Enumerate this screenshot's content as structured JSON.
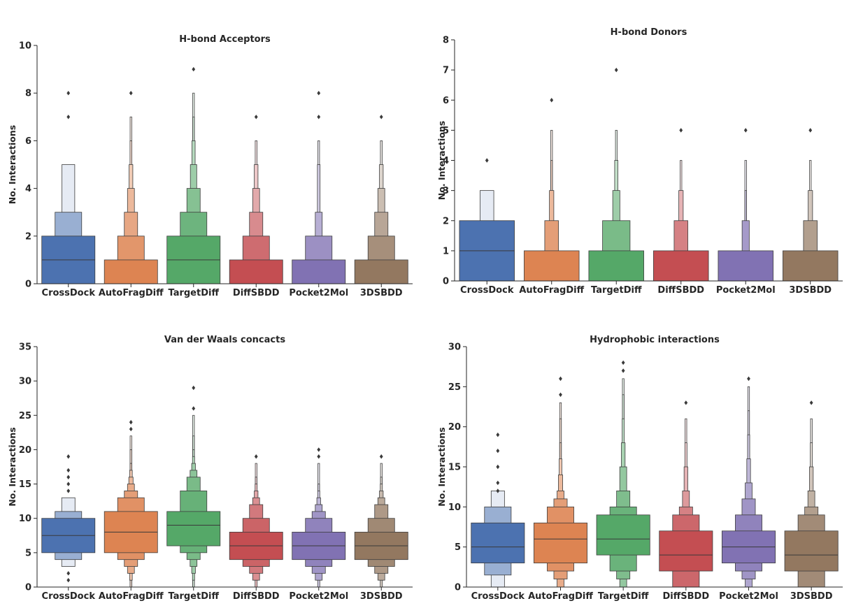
{
  "colors": {
    "CrossDock": "#4c72b0",
    "AutoFragDiff": "#dd8452",
    "TargetDiff": "#55a868",
    "DiffSBDD": "#c44e52",
    "Pocket2Mol": "#8172b3",
    "3DSBDD": "#937860",
    "axis": "#262626",
    "median": "#3a3a3a"
  },
  "chart_data": [
    {
      "type": "boxen",
      "title": "H-bond Acceptors",
      "xlabel": "",
      "ylabel": "No. Interactions",
      "ylim": [
        0,
        10
      ],
      "yticks": [
        0,
        2,
        4,
        6,
        8,
        10
      ],
      "categories": [
        "CrossDock",
        "AutoFragDiff",
        "TargetDiff",
        "DiffSBDD",
        "Pocket2Mol",
        "3DSBDD"
      ],
      "series": [
        {
          "name": "CrossDock",
          "median": 1,
          "boxes": [
            [
              0,
              2,
              1.0
            ],
            [
              0,
              3,
              0.5
            ],
            [
              0,
              5,
              0.24
            ]
          ],
          "outliers": [
            7,
            8
          ]
        },
        {
          "name": "AutoFragDiff",
          "median": 0,
          "boxes": [
            [
              0,
              1,
              1.0
            ],
            [
              0,
              2,
              0.5
            ],
            [
              0,
              3,
              0.25
            ],
            [
              0,
              4,
              0.13
            ],
            [
              0,
              5,
              0.07
            ],
            [
              0,
              6,
              0.035
            ],
            [
              0,
              7,
              0.018
            ]
          ],
          "outliers": [
            8
          ]
        },
        {
          "name": "TargetDiff",
          "median": 1,
          "boxes": [
            [
              0,
              2,
              1.0
            ],
            [
              0,
              3,
              0.5
            ],
            [
              0,
              4,
              0.25
            ],
            [
              0,
              5,
              0.12
            ],
            [
              0,
              6,
              0.06
            ],
            [
              0,
              7,
              0.03
            ],
            [
              0,
              8,
              0.015
            ]
          ],
          "outliers": [
            9
          ]
        },
        {
          "name": "DiffSBDD",
          "median": 0,
          "boxes": [
            [
              0,
              1,
              1.0
            ],
            [
              0,
              2,
              0.5
            ],
            [
              0,
              3,
              0.25
            ],
            [
              0,
              4,
              0.13
            ],
            [
              0,
              5,
              0.07
            ],
            [
              0,
              6,
              0.035
            ]
          ],
          "outliers": [
            7
          ]
        },
        {
          "name": "Pocket2Mol",
          "median": 0,
          "boxes": [
            [
              0,
              1,
              1.0
            ],
            [
              0,
              2,
              0.5
            ],
            [
              0,
              3,
              0.13
            ],
            [
              0,
              5,
              0.05
            ],
            [
              0,
              6,
              0.02
            ]
          ],
          "outliers": [
            7,
            8
          ]
        },
        {
          "name": "3DSBDD",
          "median": 0,
          "boxes": [
            [
              0,
              1,
              1.0
            ],
            [
              0,
              2,
              0.5
            ],
            [
              0,
              3,
              0.25
            ],
            [
              0,
              4,
              0.13
            ],
            [
              0,
              5,
              0.07
            ],
            [
              0,
              6,
              0.035
            ]
          ],
          "outliers": [
            7
          ]
        }
      ]
    },
    {
      "type": "boxen",
      "title": "H-bond Donors",
      "xlabel": "",
      "ylabel": "No. Interactions",
      "ylim": [
        0,
        8
      ],
      "yticks": [
        0,
        1,
        2,
        3,
        4,
        5,
        6,
        7,
        8
      ],
      "categories": [
        "CrossDock",
        "AutoFragDiff",
        "TargetDiff",
        "DiffSBDD",
        "Pocket2Mol",
        "3DSBDD"
      ],
      "series": [
        {
          "name": "CrossDock",
          "median": 1,
          "boxes": [
            [
              0,
              2,
              1.0
            ],
            [
              0,
              3,
              0.25
            ]
          ],
          "outliers": [
            4
          ]
        },
        {
          "name": "AutoFragDiff",
          "median": 0,
          "boxes": [
            [
              0,
              1,
              1.0
            ],
            [
              0,
              2,
              0.25
            ],
            [
              0,
              3,
              0.08
            ],
            [
              0,
              4,
              0.03
            ],
            [
              0,
              5,
              0.015
            ]
          ],
          "outliers": [
            6
          ]
        },
        {
          "name": "TargetDiff",
          "median": 0,
          "boxes": [
            [
              0,
              1,
              1.0
            ],
            [
              0,
              2,
              0.5
            ],
            [
              0,
              3,
              0.13
            ],
            [
              0,
              4,
              0.06
            ],
            [
              0,
              5,
              0.02
            ]
          ],
          "outliers": [
            7
          ]
        },
        {
          "name": "DiffSBDD",
          "median": 0,
          "boxes": [
            [
              0,
              1,
              1.0
            ],
            [
              0,
              2,
              0.25
            ],
            [
              0,
              3,
              0.08
            ],
            [
              0,
              4,
              0.02
            ]
          ],
          "outliers": [
            5
          ]
        },
        {
          "name": "Pocket2Mol",
          "median": 0,
          "boxes": [
            [
              0,
              1,
              1.0
            ],
            [
              0,
              2,
              0.13
            ],
            [
              0,
              3,
              0.03
            ],
            [
              0,
              4,
              0.015
            ]
          ],
          "outliers": [
            5
          ]
        },
        {
          "name": "3DSBDD",
          "median": 0,
          "boxes": [
            [
              0,
              1,
              1.0
            ],
            [
              0,
              2,
              0.25
            ],
            [
              0,
              3,
              0.08
            ],
            [
              0,
              4,
              0.02
            ]
          ],
          "outliers": [
            5
          ]
        }
      ]
    },
    {
      "type": "boxen",
      "title": "Van der Waals concacts",
      "xlabel": "",
      "ylabel": "No. Interactions",
      "ylim": [
        0,
        35
      ],
      "yticks": [
        0,
        5,
        10,
        15,
        20,
        25,
        30,
        35
      ],
      "categories": [
        "CrossDock",
        "AutoFragDiff",
        "TargetDiff",
        "DiffSBDD",
        "Pocket2Mol",
        "3DSBDD"
      ],
      "series": [
        {
          "name": "CrossDock",
          "median": 7.5,
          "boxes": [
            [
              5,
              10,
              1.0
            ],
            [
              4,
              11,
              0.5
            ],
            [
              3,
              13,
              0.25
            ]
          ],
          "outliers": [
            2,
            1,
            14,
            15,
            16,
            17,
            19
          ]
        },
        {
          "name": "AutoFragDiff",
          "median": 8,
          "boxes": [
            [
              5,
              11,
              1.0
            ],
            [
              4,
              13,
              0.5
            ],
            [
              3,
              14,
              0.25
            ],
            [
              2,
              15,
              0.13
            ],
            [
              2,
              16,
              0.08
            ],
            [
              1,
              17,
              0.05
            ],
            [
              1,
              18,
              0.03
            ],
            [
              0,
              20,
              0.018
            ],
            [
              0,
              22,
              0.01
            ]
          ],
          "outliers": [
            23,
            24
          ]
        },
        {
          "name": "TargetDiff",
          "median": 9,
          "boxes": [
            [
              6,
              11,
              1.0
            ],
            [
              5,
              14,
              0.5
            ],
            [
              4,
              16,
              0.25
            ],
            [
              3,
              17,
              0.13
            ],
            [
              2,
              18,
              0.07
            ],
            [
              1,
              19,
              0.04
            ],
            [
              1,
              20,
              0.025
            ],
            [
              0,
              22,
              0.015
            ],
            [
              0,
              25,
              0.008
            ]
          ],
          "outliers": [
            26,
            29
          ]
        },
        {
          "name": "DiffSBDD",
          "median": 6,
          "boxes": [
            [
              4,
              8,
              1.0
            ],
            [
              3,
              10,
              0.5
            ],
            [
              2,
              12,
              0.25
            ],
            [
              1,
              13,
              0.13
            ],
            [
              1,
              14,
              0.07
            ],
            [
              0,
              15,
              0.04
            ],
            [
              0,
              16,
              0.02
            ],
            [
              0,
              18,
              0.012
            ]
          ],
          "outliers": [
            19
          ]
        },
        {
          "name": "Pocket2Mol",
          "median": 6,
          "boxes": [
            [
              4,
              8,
              1.0
            ],
            [
              3,
              10,
              0.5
            ],
            [
              2,
              11,
              0.25
            ],
            [
              1,
              12,
              0.13
            ],
            [
              1,
              13,
              0.07
            ],
            [
              0,
              14,
              0.04
            ],
            [
              0,
              15,
              0.02
            ],
            [
              0,
              18,
              0.012
            ]
          ],
          "outliers": [
            19,
            20
          ]
        },
        {
          "name": "3DSBDD",
          "median": 6,
          "boxes": [
            [
              4,
              8,
              1.0
            ],
            [
              3,
              10,
              0.5
            ],
            [
              2,
              12,
              0.25
            ],
            [
              1,
              13,
              0.13
            ],
            [
              1,
              14,
              0.07
            ],
            [
              0,
              15,
              0.04
            ],
            [
              0,
              16,
              0.02
            ],
            [
              0,
              18,
              0.012
            ]
          ],
          "outliers": [
            19
          ]
        }
      ]
    },
    {
      "type": "boxen",
      "title": "Hydrophobic interactions",
      "xlabel": "",
      "ylabel": "No. Interactions",
      "ylim": [
        0,
        30
      ],
      "yticks": [
        0,
        5,
        10,
        15,
        20,
        25,
        30
      ],
      "categories": [
        "CrossDock",
        "AutoFragDiff",
        "TargetDiff",
        "DiffSBDD",
        "Pocket2Mol",
        "3DSBDD"
      ],
      "series": [
        {
          "name": "CrossDock",
          "median": 5,
          "boxes": [
            [
              3,
              8,
              1.0
            ],
            [
              1.5,
              10,
              0.5
            ],
            [
              0,
              12,
              0.25
            ]
          ],
          "outliers": [
            12,
            13,
            15,
            17,
            19
          ]
        },
        {
          "name": "AutoFragDiff",
          "median": 6,
          "boxes": [
            [
              3,
              8,
              1.0
            ],
            [
              2,
              10,
              0.5
            ],
            [
              1,
              11,
              0.25
            ],
            [
              0,
              12,
              0.13
            ],
            [
              0,
              14,
              0.08
            ],
            [
              0,
              16,
              0.05
            ],
            [
              0,
              18,
              0.03
            ],
            [
              0,
              21,
              0.018
            ],
            [
              0,
              23,
              0.01
            ]
          ],
          "outliers": [
            24,
            26
          ]
        },
        {
          "name": "TargetDiff",
          "median": 6,
          "boxes": [
            [
              4,
              9,
              1.0
            ],
            [
              2,
              10,
              0.5
            ],
            [
              1,
              12,
              0.25
            ],
            [
              0,
              15,
              0.13
            ],
            [
              0,
              18,
              0.07
            ],
            [
              0,
              21,
              0.04
            ],
            [
              0,
              24,
              0.02
            ],
            [
              0,
              26,
              0.01
            ]
          ],
          "outliers": [
            27,
            28
          ]
        },
        {
          "name": "DiffSBDD",
          "median": 4,
          "boxes": [
            [
              2,
              7,
              1.0
            ],
            [
              0,
              9,
              0.5
            ],
            [
              0,
              10,
              0.25
            ],
            [
              0,
              12,
              0.13
            ],
            [
              0,
              15,
              0.07
            ],
            [
              0,
              18,
              0.04
            ],
            [
              0,
              21,
              0.02
            ]
          ],
          "outliers": [
            23
          ]
        },
        {
          "name": "Pocket2Mol",
          "median": 5,
          "boxes": [
            [
              3,
              7,
              1.0
            ],
            [
              2,
              9,
              0.5
            ],
            [
              1,
              11,
              0.25
            ],
            [
              0,
              13,
              0.13
            ],
            [
              0,
              16,
              0.07
            ],
            [
              0,
              19,
              0.04
            ],
            [
              0,
              22,
              0.02
            ],
            [
              0,
              25,
              0.01
            ]
          ],
          "outliers": [
            26
          ]
        },
        {
          "name": "3DSBDD",
          "median": 4,
          "boxes": [
            [
              2,
              7,
              1.0
            ],
            [
              0,
              9,
              0.5
            ],
            [
              0,
              10,
              0.25
            ],
            [
              0,
              12,
              0.13
            ],
            [
              0,
              15,
              0.07
            ],
            [
              0,
              18,
              0.04
            ],
            [
              0,
              21,
              0.02
            ]
          ],
          "outliers": [
            23
          ]
        }
      ]
    }
  ]
}
